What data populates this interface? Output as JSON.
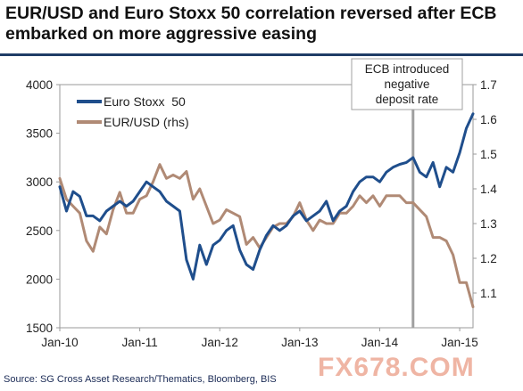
{
  "title": "EUR/USD and Euro Stoxx 50 correlation reversed after ECB embarked on more aggressive easing",
  "source": "Source: SG Cross Asset Research/Thematics, Bloomberg, BIS",
  "watermark": "FX678.COM",
  "colors": {
    "title_rule": "#1f3c66",
    "euro_stoxx": "#1f4e8c",
    "eurusd": "#b08a75",
    "annotation_line": "#a0a0a0"
  },
  "chart_data": {
    "type": "line",
    "grid": false,
    "legend_position": "top-left",
    "x_ticks": [
      "Jan-10",
      "Jan-11",
      "Jan-12",
      "Jan-13",
      "Jan-14",
      "Jan-15"
    ],
    "x_range": [
      "2010-01",
      "2015-03"
    ],
    "y_left": {
      "range": [
        1500,
        4000
      ],
      "ticks": [
        "1500",
        "2000",
        "2500",
        "3000",
        "3500",
        "4000"
      ]
    },
    "y_right": {
      "range": [
        1.0,
        1.7
      ],
      "ticks": [
        "1.1",
        "1.2",
        "1.3",
        "1.4",
        "1.5",
        "1.6",
        "1.7"
      ]
    },
    "annotation": {
      "text_lines": [
        "ECB introduced",
        "negative",
        "deposit rate"
      ],
      "date": "2014-06"
    },
    "series": [
      {
        "name": "Euro Stoxx  50",
        "axis": "left",
        "points": [
          [
            "2010-01",
            2950
          ],
          [
            "2010-02",
            2700
          ],
          [
            "2010-03",
            2900
          ],
          [
            "2010-04",
            2850
          ],
          [
            "2010-05",
            2650
          ],
          [
            "2010-06",
            2650
          ],
          [
            "2010-07",
            2600
          ],
          [
            "2010-08",
            2700
          ],
          [
            "2010-09",
            2750
          ],
          [
            "2010-10",
            2800
          ],
          [
            "2010-11",
            2750
          ],
          [
            "2010-12",
            2800
          ],
          [
            "2011-01",
            2900
          ],
          [
            "2011-02",
            3000
          ],
          [
            "2011-03",
            2950
          ],
          [
            "2011-04",
            2900
          ],
          [
            "2011-05",
            2800
          ],
          [
            "2011-06",
            2750
          ],
          [
            "2011-07",
            2700
          ],
          [
            "2011-08",
            2200
          ],
          [
            "2011-09",
            2000
          ],
          [
            "2011-10",
            2350
          ],
          [
            "2011-11",
            2150
          ],
          [
            "2011-12",
            2350
          ],
          [
            "2012-01",
            2400
          ],
          [
            "2012-02",
            2500
          ],
          [
            "2012-03",
            2550
          ],
          [
            "2012-04",
            2300
          ],
          [
            "2012-05",
            2150
          ],
          [
            "2012-06",
            2100
          ],
          [
            "2012-07",
            2300
          ],
          [
            "2012-08",
            2450
          ],
          [
            "2012-09",
            2550
          ],
          [
            "2012-10",
            2500
          ],
          [
            "2012-11",
            2550
          ],
          [
            "2012-12",
            2650
          ],
          [
            "2013-01",
            2700
          ],
          [
            "2013-02",
            2600
          ],
          [
            "2013-03",
            2650
          ],
          [
            "2013-04",
            2700
          ],
          [
            "2013-05",
            2800
          ],
          [
            "2013-06",
            2600
          ],
          [
            "2013-07",
            2700
          ],
          [
            "2013-08",
            2750
          ],
          [
            "2013-09",
            2900
          ],
          [
            "2013-10",
            3000
          ],
          [
            "2013-11",
            3050
          ],
          [
            "2013-12",
            3050
          ],
          [
            "2014-01",
            3000
          ],
          [
            "2014-02",
            3100
          ],
          [
            "2014-03",
            3150
          ],
          [
            "2014-04",
            3180
          ],
          [
            "2014-05",
            3200
          ],
          [
            "2014-06",
            3250
          ],
          [
            "2014-07",
            3100
          ],
          [
            "2014-08",
            3050
          ],
          [
            "2014-09",
            3200
          ],
          [
            "2014-10",
            2950
          ],
          [
            "2014-11",
            3150
          ],
          [
            "2014-12",
            3100
          ],
          [
            "2015-01",
            3300
          ],
          [
            "2015-02",
            3550
          ],
          [
            "2015-03",
            3700
          ]
        ]
      },
      {
        "name": "EUR/USD (rhs)",
        "axis": "right",
        "points": [
          [
            "2010-01",
            1.43
          ],
          [
            "2010-02",
            1.37
          ],
          [
            "2010-03",
            1.35
          ],
          [
            "2010-04",
            1.33
          ],
          [
            "2010-05",
            1.25
          ],
          [
            "2010-06",
            1.22
          ],
          [
            "2010-07",
            1.29
          ],
          [
            "2010-08",
            1.27
          ],
          [
            "2010-09",
            1.34
          ],
          [
            "2010-10",
            1.39
          ],
          [
            "2010-11",
            1.33
          ],
          [
            "2010-12",
            1.33
          ],
          [
            "2011-01",
            1.37
          ],
          [
            "2011-02",
            1.38
          ],
          [
            "2011-03",
            1.42
          ],
          [
            "2011-04",
            1.47
          ],
          [
            "2011-05",
            1.43
          ],
          [
            "2011-06",
            1.44
          ],
          [
            "2011-07",
            1.43
          ],
          [
            "2011-08",
            1.45
          ],
          [
            "2011-09",
            1.37
          ],
          [
            "2011-10",
            1.4
          ],
          [
            "2011-11",
            1.35
          ],
          [
            "2011-12",
            1.3
          ],
          [
            "2012-01",
            1.31
          ],
          [
            "2012-02",
            1.34
          ],
          [
            "2012-03",
            1.33
          ],
          [
            "2012-04",
            1.32
          ],
          [
            "2012-05",
            1.24
          ],
          [
            "2012-06",
            1.26
          ],
          [
            "2012-07",
            1.23
          ],
          [
            "2012-08",
            1.26
          ],
          [
            "2012-09",
            1.29
          ],
          [
            "2012-10",
            1.3
          ],
          [
            "2012-11",
            1.3
          ],
          [
            "2012-12",
            1.32
          ],
          [
            "2013-01",
            1.36
          ],
          [
            "2013-02",
            1.31
          ],
          [
            "2013-03",
            1.28
          ],
          [
            "2013-04",
            1.31
          ],
          [
            "2013-05",
            1.3
          ],
          [
            "2013-06",
            1.3
          ],
          [
            "2013-07",
            1.33
          ],
          [
            "2013-08",
            1.33
          ],
          [
            "2013-09",
            1.35
          ],
          [
            "2013-10",
            1.38
          ],
          [
            "2013-11",
            1.36
          ],
          [
            "2013-12",
            1.38
          ],
          [
            "2014-01",
            1.35
          ],
          [
            "2014-02",
            1.38
          ],
          [
            "2014-03",
            1.38
          ],
          [
            "2014-04",
            1.38
          ],
          [
            "2014-05",
            1.36
          ],
          [
            "2014-06",
            1.36
          ],
          [
            "2014-07",
            1.34
          ],
          [
            "2014-08",
            1.32
          ],
          [
            "2014-09",
            1.26
          ],
          [
            "2014-10",
            1.26
          ],
          [
            "2014-11",
            1.25
          ],
          [
            "2014-12",
            1.21
          ],
          [
            "2015-01",
            1.13
          ],
          [
            "2015-02",
            1.13
          ],
          [
            "2015-03",
            1.06
          ]
        ]
      }
    ]
  }
}
